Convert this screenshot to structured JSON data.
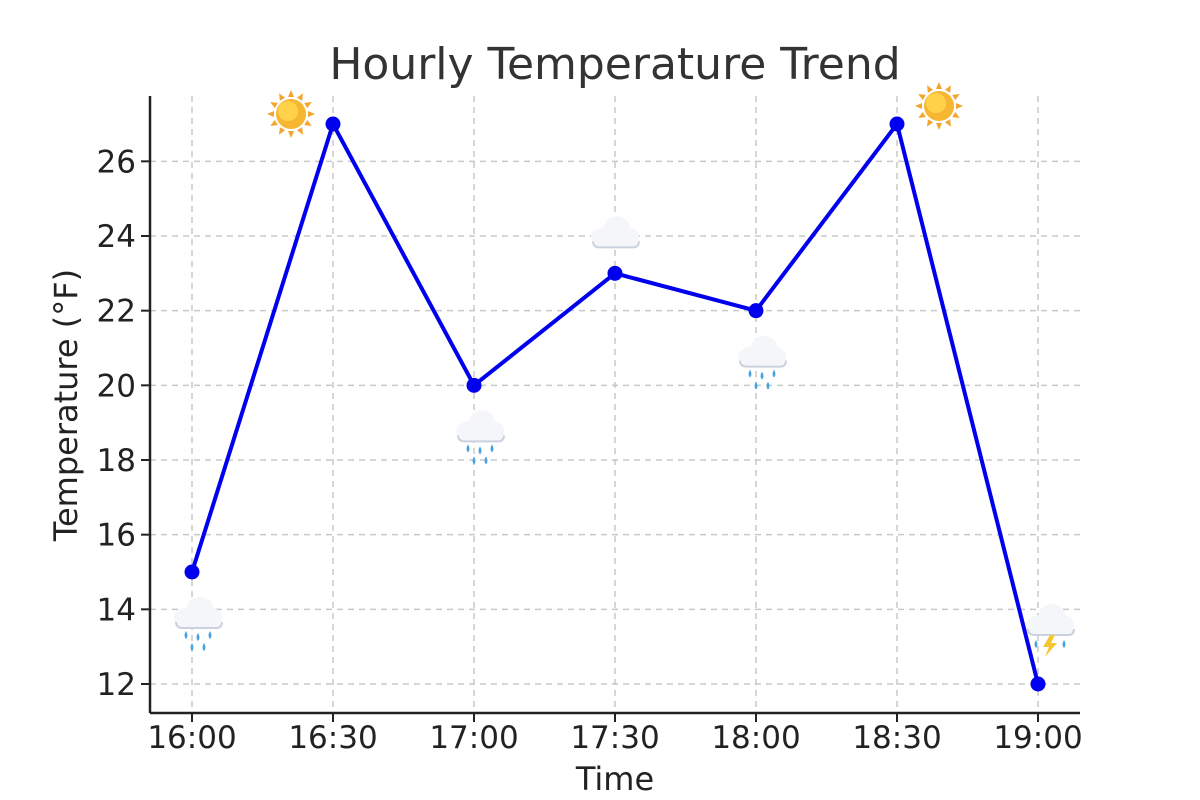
{
  "chart_data": {
    "type": "line",
    "title": "Hourly Temperature Trend",
    "xlabel": "Time",
    "ylabel": "Temperature (°F)",
    "categories": [
      "16:00",
      "16:30",
      "17:00",
      "17:30",
      "18:00",
      "18:30",
      "19:00"
    ],
    "series": [
      {
        "values": [
          15,
          27,
          20,
          23,
          22,
          27,
          12
        ]
      }
    ],
    "weather_icons": [
      "rain",
      "sun",
      "rain",
      "cloud",
      "rain",
      "sun",
      "thunderstorm"
    ],
    "weather_icon_position": [
      "below",
      "left",
      "below",
      "above",
      "below",
      "right",
      "above"
    ],
    "yticks": [
      12,
      14,
      16,
      18,
      20,
      22,
      24,
      26
    ],
    "ylim": [
      11.25,
      27.75
    ],
    "grid": true,
    "colors": {
      "line": "#0000ee",
      "marker": "#0000ee"
    }
  }
}
